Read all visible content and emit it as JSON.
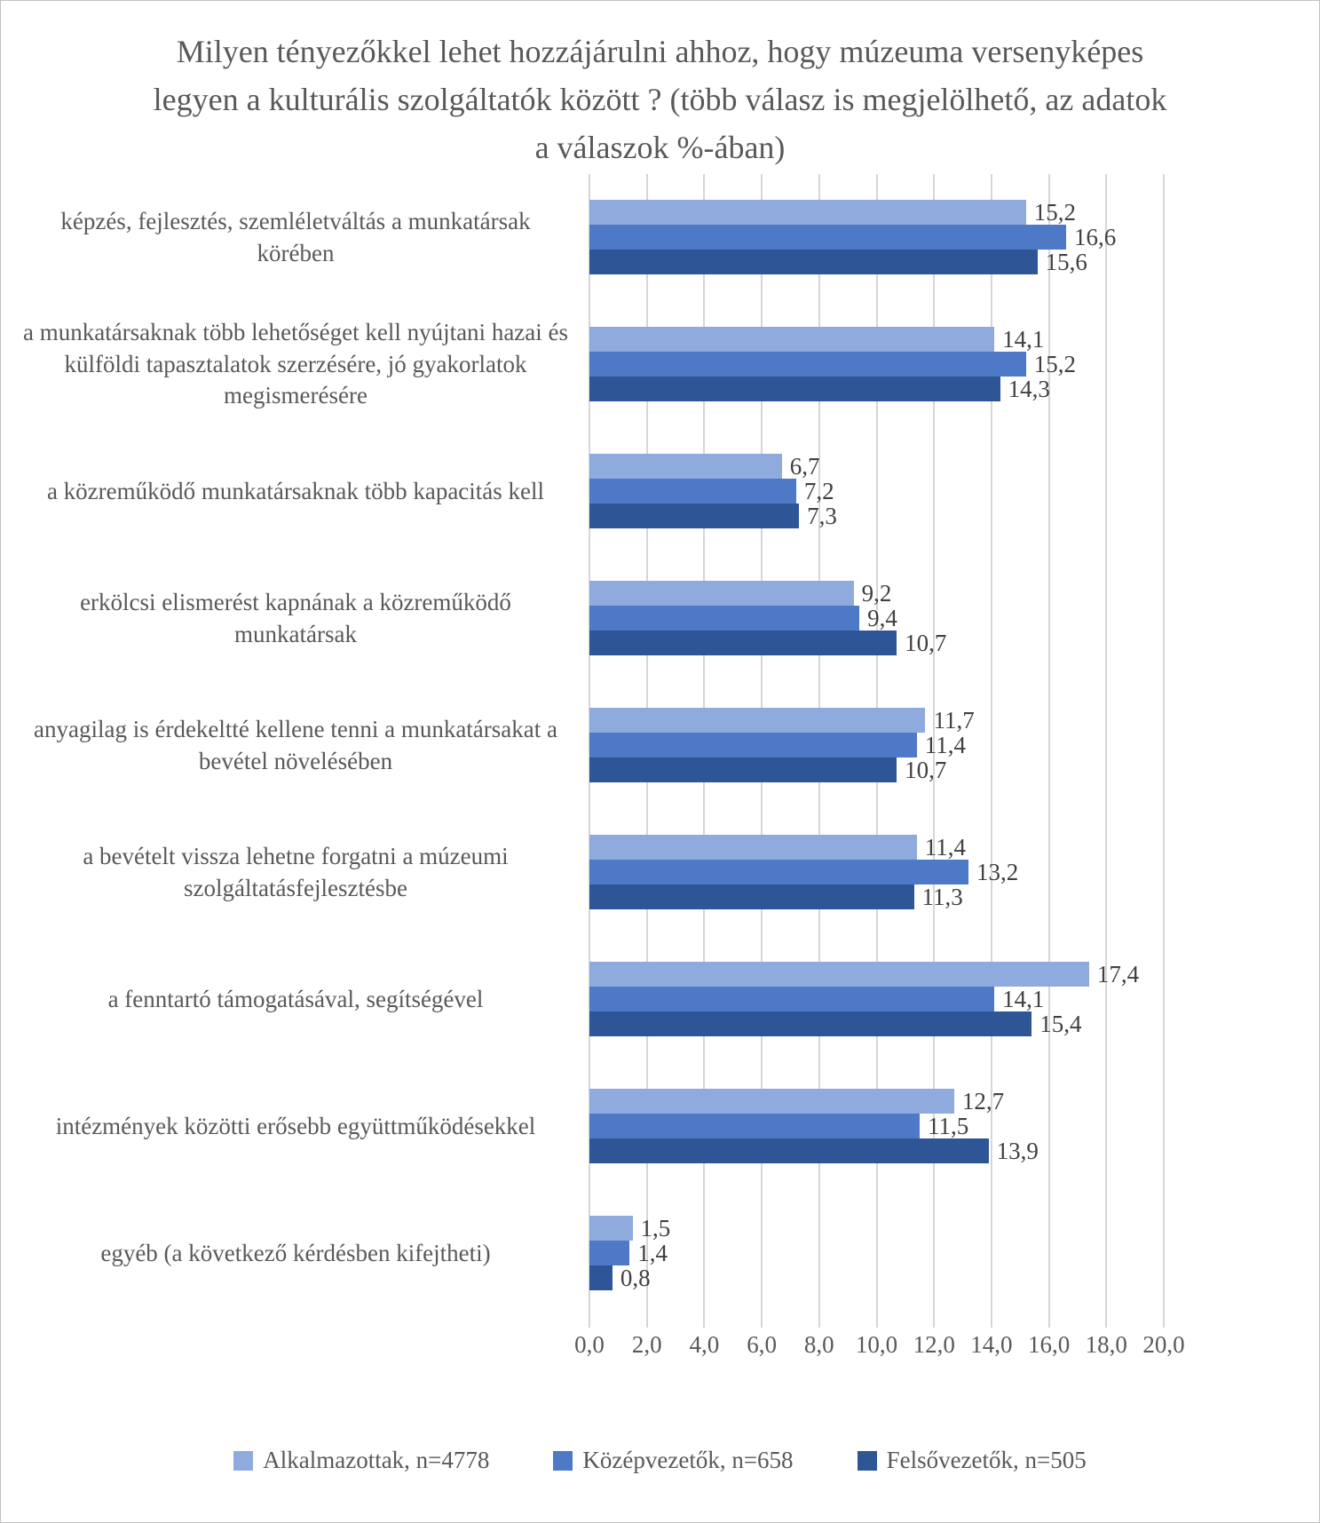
{
  "chart_data": {
    "type": "bar",
    "orientation": "horizontal",
    "title": "Milyen tényezőkkel lehet hozzájárulni ahhoz, hogy múzeuma versenyképes legyen a kulturális szolgáltatók között ? (több válasz is megjelölhető, az adatok a válaszok %-ában)",
    "categories": [
      "képzés, fejlesztés, szemléletváltás a munkatársak körében",
      "a munkatársaknak több lehetőséget kell nyújtani hazai és külföldi tapasztalatok szerzésére, jó gyakorlatok megismerésére",
      "a közreműködő munkatársaknak több kapacitás kell",
      "erkölcsi elismerést kapnának a közreműködő munkatársak",
      "anyagilag is érdekeltté kellene tenni a munkatársakat a bevétel növelésében",
      "a bevételt vissza lehetne forgatni a múzeumi szolgáltatásfejlesztésbe",
      "a fenntartó támogatásával, segítségével",
      "intézmények közötti erősebb együttműködésekkel",
      "egyéb (a következő kérdésben kifejtheti)"
    ],
    "series": [
      {
        "name": "Alkalmazottak, n=4778",
        "color": "#8FAADC",
        "values": [
          15.2,
          14.1,
          6.7,
          9.2,
          11.7,
          11.4,
          17.4,
          12.7,
          1.5
        ],
        "value_labels": [
          "15,2",
          "14,1",
          "6,7",
          "9,2",
          "11,7",
          "11,4",
          "17,4",
          "12,7",
          "1,5"
        ]
      },
      {
        "name": "Középvezetők, n=658",
        "color": "#4D79C6",
        "values": [
          16.6,
          15.2,
          7.2,
          9.4,
          11.4,
          13.2,
          14.1,
          11.5,
          1.4
        ],
        "value_labels": [
          "16,6",
          "15,2",
          "7,2",
          "9,4",
          "11,4",
          "13,2",
          "14,1",
          "11,5",
          "1,4"
        ]
      },
      {
        "name": "Felsővezetők, n=505",
        "color": "#2E5596",
        "values": [
          15.6,
          14.3,
          7.3,
          10.7,
          10.7,
          11.3,
          15.4,
          13.9,
          0.8
        ],
        "value_labels": [
          "15,6",
          "14,3",
          "7,3",
          "10,7",
          "10,7",
          "11,3",
          "15,4",
          "13,9",
          "0,8"
        ]
      }
    ],
    "xlim": [
      0,
      20
    ],
    "x_ticks": [
      "0,0",
      "2,0",
      "4,0",
      "6,0",
      "8,0",
      "10,0",
      "12,0",
      "14,0",
      "16,0",
      "18,0",
      "20,0"
    ],
    "grid": true,
    "legend_position": "bottom"
  },
  "colors": {
    "grid": "#D6D6D6",
    "axis_text": "#595959",
    "value_text": "#404040",
    "frame_border": "#C3C3C3"
  }
}
